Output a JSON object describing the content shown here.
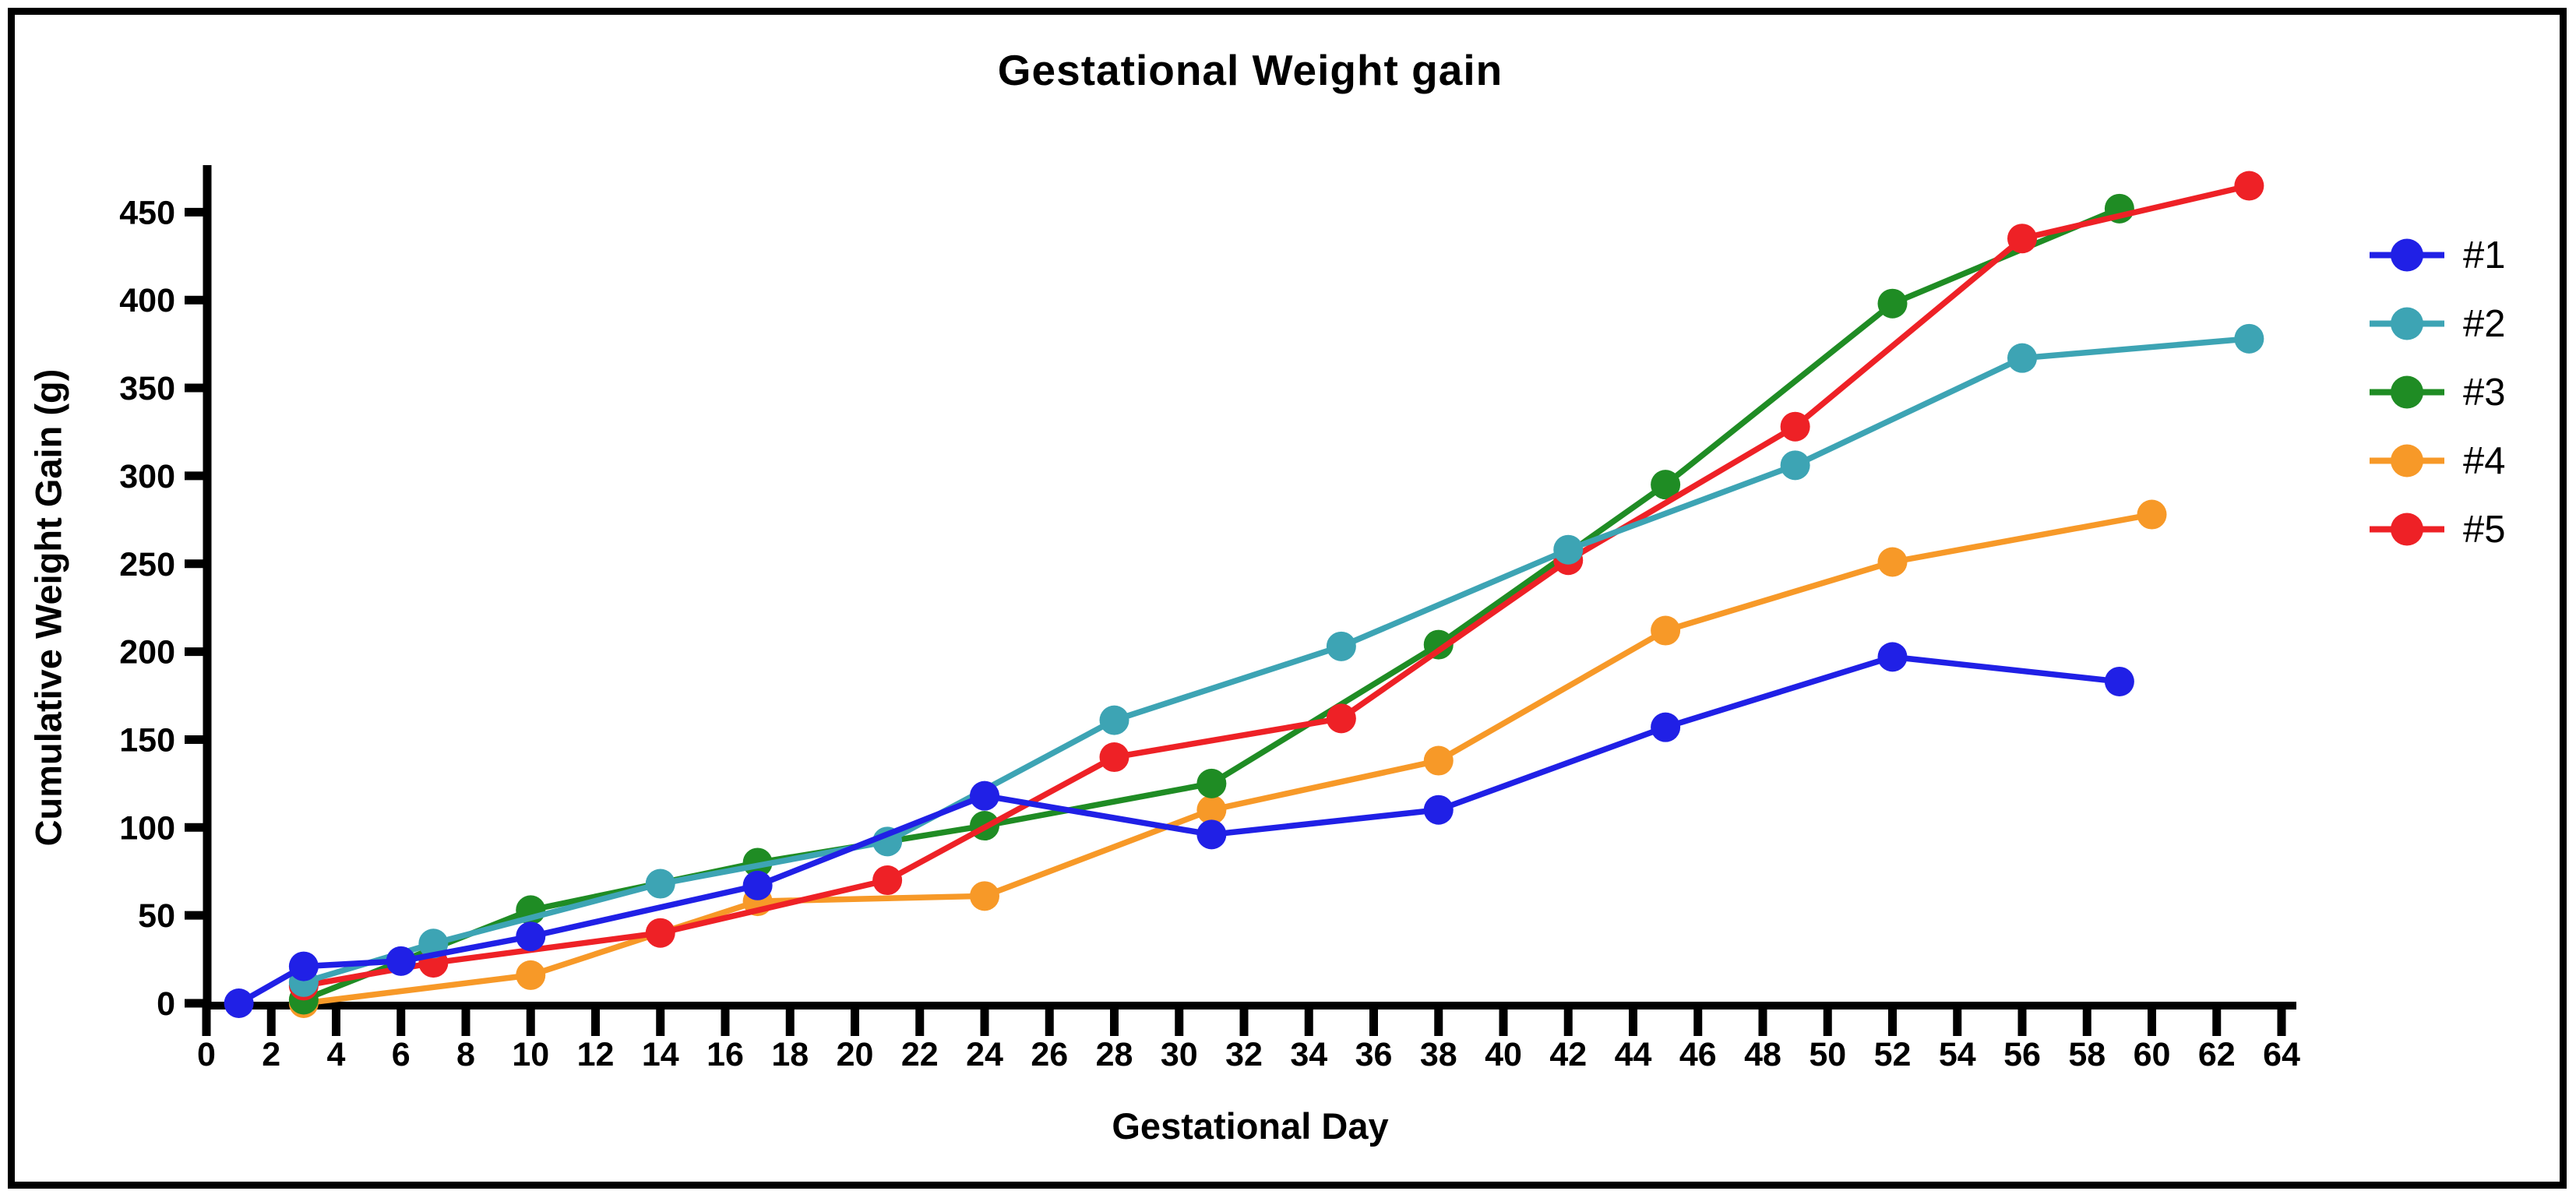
{
  "chart_data": {
    "type": "line",
    "title": "Gestational Weight gain",
    "xlabel": "Gestational Day",
    "ylabel": "Cumulative Weight Gain (g)",
    "xlim": [
      0,
      64
    ],
    "ylim": [
      0,
      450
    ],
    "x_ticks": [
      0,
      2,
      4,
      6,
      8,
      10,
      12,
      14,
      16,
      18,
      20,
      22,
      24,
      26,
      28,
      30,
      32,
      34,
      36,
      38,
      40,
      42,
      44,
      46,
      48,
      50,
      52,
      54,
      56,
      58,
      60,
      62,
      64
    ],
    "y_ticks": [
      0,
      50,
      100,
      150,
      200,
      250,
      300,
      350,
      400,
      450
    ],
    "grid": false,
    "legend_position": "right",
    "axis_color": "#000000",
    "series": [
      {
        "name": "#1",
        "color": "#2020e6",
        "days": [
          1,
          3,
          6,
          10,
          17,
          24,
          31,
          38,
          45,
          52,
          59
        ],
        "values": [
          0,
          21,
          24,
          38,
          67,
          118,
          96,
          110,
          157,
          197,
          183
        ]
      },
      {
        "name": "#2",
        "color": "#3da4b4",
        "days": [
          3,
          7,
          14,
          21,
          28,
          35,
          42,
          49,
          56,
          63
        ],
        "values": [
          12,
          34,
          68,
          92,
          161,
          203,
          258,
          306,
          367,
          378
        ]
      },
      {
        "name": "#3",
        "color": "#1f8c24",
        "days": [
          3,
          10,
          17,
          24,
          31,
          38,
          45,
          52,
          59
        ],
        "values": [
          2,
          53,
          80,
          101,
          125,
          204,
          295,
          398,
          452
        ]
      },
      {
        "name": "#4",
        "color": "#f79928",
        "days": [
          3,
          10,
          17,
          24,
          31,
          38,
          45,
          52,
          60
        ],
        "values": [
          0,
          16,
          58,
          61,
          110,
          138,
          212,
          251,
          278
        ]
      },
      {
        "name": "#5",
        "color": "#ee2126",
        "days": [
          3,
          7,
          14,
          21,
          28,
          35,
          42,
          49,
          56,
          63
        ],
        "values": [
          10,
          23,
          40,
          70,
          140,
          162,
          252,
          328,
          435,
          465
        ]
      }
    ]
  }
}
